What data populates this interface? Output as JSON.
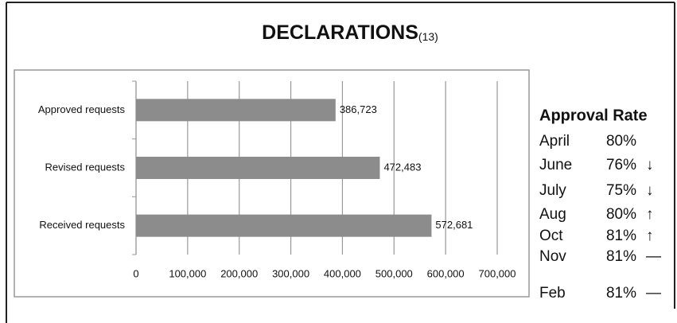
{
  "chart_data": {
    "type": "barh",
    "title": "DECLARATIONS",
    "title_note": "(13)",
    "categories": [
      "Approved requests",
      "Revised requests",
      "Received requests"
    ],
    "values": [
      386723,
      472483,
      572681
    ],
    "value_labels": [
      "386,723",
      "472,483",
      "572,681"
    ],
    "color": "#8c8c8c",
    "xlim": [
      0,
      700000
    ],
    "xticks": [
      0,
      {
        "value": 100000,
        "label": "100,000"
      },
      {
        "value": 200000,
        "label": "200,000"
      },
      {
        "value": 300000,
        "label": "300,000"
      },
      {
        "value": 400000,
        "label": "400,000"
      },
      {
        "value": 500000,
        "label": "500,000"
      },
      {
        "value": 600000,
        "label": "600,000"
      },
      {
        "value": 700000,
        "label": "700,000"
      }
    ],
    "grid": true
  },
  "approval_rate": {
    "title": "Approval Rate",
    "rows": [
      {
        "month": "April",
        "rate": "80%"
      },
      {
        "month": "June",
        "rate": "76%",
        "trend": "↓"
      },
      {
        "month": "July",
        "rate": "75%",
        "trend": "↓"
      },
      {
        "month": "Aug",
        "rate": "80%",
        "trend": "↑"
      },
      {
        "month": "Oct",
        "rate": "81%",
        "trend": "↑"
      },
      {
        "month": "Nov",
        "rate": "81%",
        "trend": "—"
      },
      {
        "month": "Feb",
        "rate": "81%",
        "trend": "—"
      }
    ]
  }
}
